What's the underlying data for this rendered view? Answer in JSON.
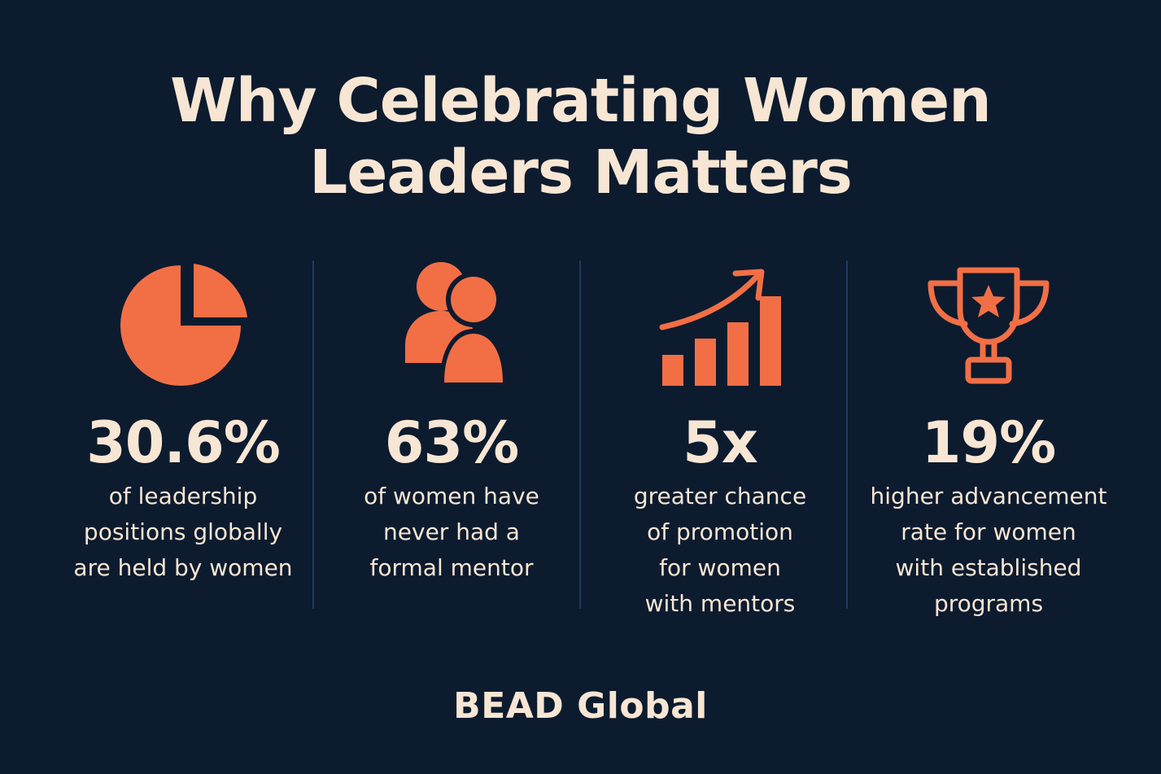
{
  "title": {
    "line1": "Why Celebrating Women",
    "line2": "Leaders Matters"
  },
  "colors": {
    "background": "#0d1b2f",
    "accent": "#f26f45",
    "text": "#f7e6d3",
    "divider": "#1f3a5e"
  },
  "stats": [
    {
      "icon": "pie-chart-icon",
      "value": "30.6%",
      "lines": [
        "of leadership",
        "positions globally",
        "are held by women"
      ]
    },
    {
      "icon": "people-icon",
      "value": "63%",
      "lines": [
        "of women have",
        "never had a",
        "formal mentor"
      ]
    },
    {
      "icon": "growth-bar-chart-icon",
      "value": "5x",
      "lines": [
        "greater chance",
        "of promotion",
        "for women",
        "with mentors"
      ]
    },
    {
      "icon": "trophy-icon",
      "value": "19%",
      "lines": [
        "higher advancement",
        "rate for women",
        "with established",
        "programs"
      ]
    }
  ],
  "brand": "BEAD Global"
}
